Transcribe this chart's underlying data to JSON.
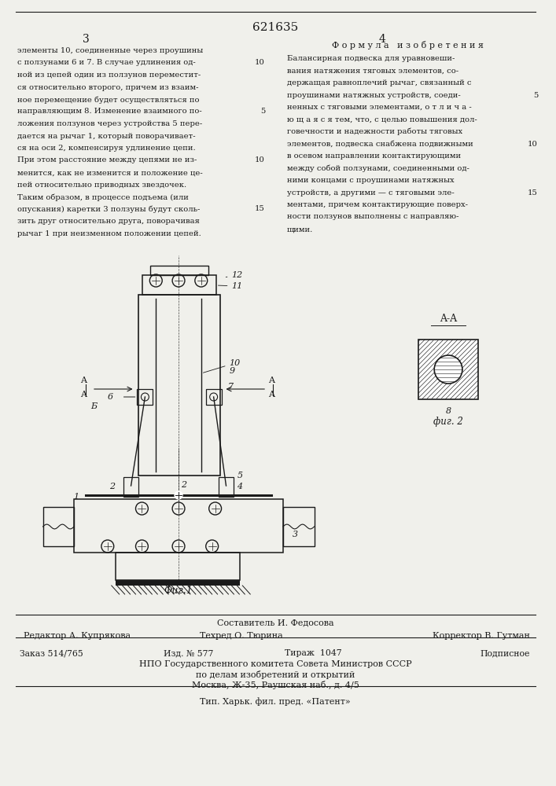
{
  "patent_number": "621635",
  "background_color": "#f0f0eb",
  "text_color": "#1a1a1a",
  "left_col_text": [
    "элементы 10, соединенные через проушины",
    "с ползунами 6 и 7. В случае удлинения од-",
    "ной из цепей один из ползунов переместит-",
    "ся относительно второго, причем из взаим-",
    "ное перемещение будет осуществляться по",
    "направляющим 8. Изменение взаимного по-",
    "ложения ползунов через устройства 5 пере-",
    "дается на рычаг 1, который поворачивает-",
    "ся на оси 2, компенсируя удлинение цепи.",
    "При этом расстояние между цепями не из-",
    "менится, как не изменится и положение це-",
    "пей относительно приводных звездочек.",
    "Таким образом, в процессе подъема (или",
    "опускания) каретки 3 ползуны будут сколь-",
    "зить друг относительно друга, поворачивая",
    "рычаг 1 при неизменном положении цепей."
  ],
  "right_col_header": "Ф о р м у л а   и з о б р е т е н и я",
  "right_col_text": [
    "Балансирная подвеска для уравновеши-",
    "вания натяжения тяговых элементов, со-",
    "держащая равноплечий рычаг, связанный с",
    "проушинами натяжных устройств, соеди-",
    "ненных с тяговыми элементами, о т л и ч а -",
    "ю щ а я с я тем, что, с целью повышения дол-",
    "говечности и надежности работы тяговых",
    "элементов, подвеска снабжена подвижными",
    "в осевом направлении контактирующими",
    "между собой ползунами, соединенными од-",
    "ними концами с проушинами натяжных",
    "устройств, а другими — с тяговыми эле-",
    "ментами, причем контактирующие поверх-",
    "ности ползунов выполнены с направляю-",
    "щими."
  ],
  "footer_compiler": "Составитель И. Федосова",
  "footer_editor": "Редактор А. Купрякова",
  "footer_techred": "Техред О. Тюрина",
  "footer_corrector": "Корректор В. Гутман",
  "footer_order": "Заказ 514/765",
  "footer_edition": "Изд. № 577",
  "footer_print": "Тираж  1047",
  "footer_signed": "Подписное",
  "footer_org1": "НПО Государственного комитета Совета Министров СССР",
  "footer_org2": "по делам изобретений и открытий",
  "footer_address": "Москва, Ж-35, Раушская наб., д. 4/5",
  "footer_print2": "Тип. Харьк. фил. пред. «Патент»",
  "fig1_caption": "Фиг.1",
  "fig2_caption": "фиг. 2",
  "fig2_label": "A-A"
}
